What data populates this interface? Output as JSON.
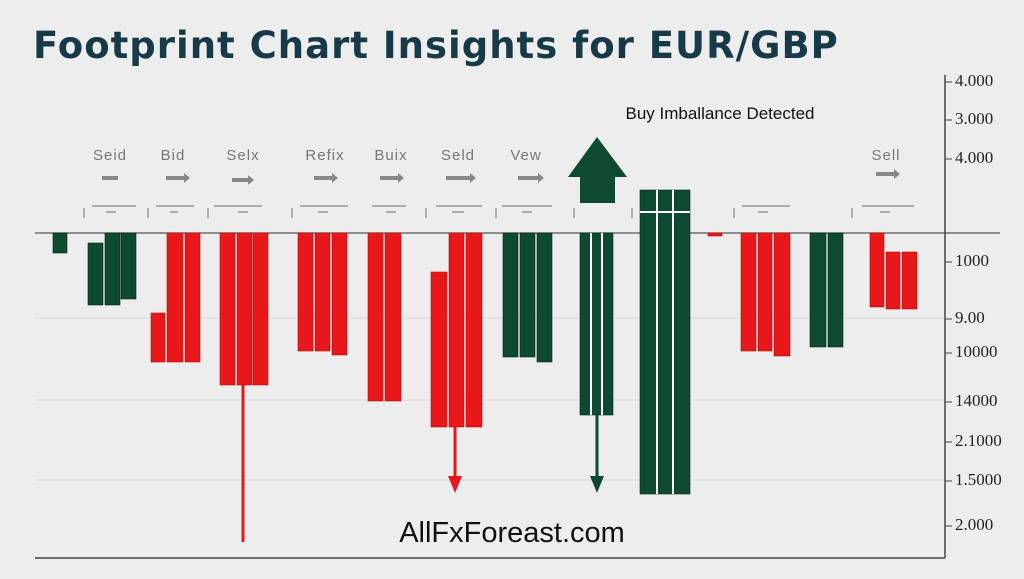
{
  "header": {
    "title": "Footprint Chart Insights for EUR/GBP"
  },
  "axis_labels": [
    "4.000",
    "3.000",
    "4.000",
    "1000",
    "9.00",
    "10000",
    "14000",
    "2.1000",
    "1.5000",
    "2.000"
  ],
  "column_labels": [
    "Seid",
    "Bid",
    "Selx",
    "Refix",
    "Buix",
    "Seld",
    "Vew",
    "Sell"
  ],
  "annotation": "Buy Imballance Detected",
  "watermark": "AllFxForeast.com"
}
